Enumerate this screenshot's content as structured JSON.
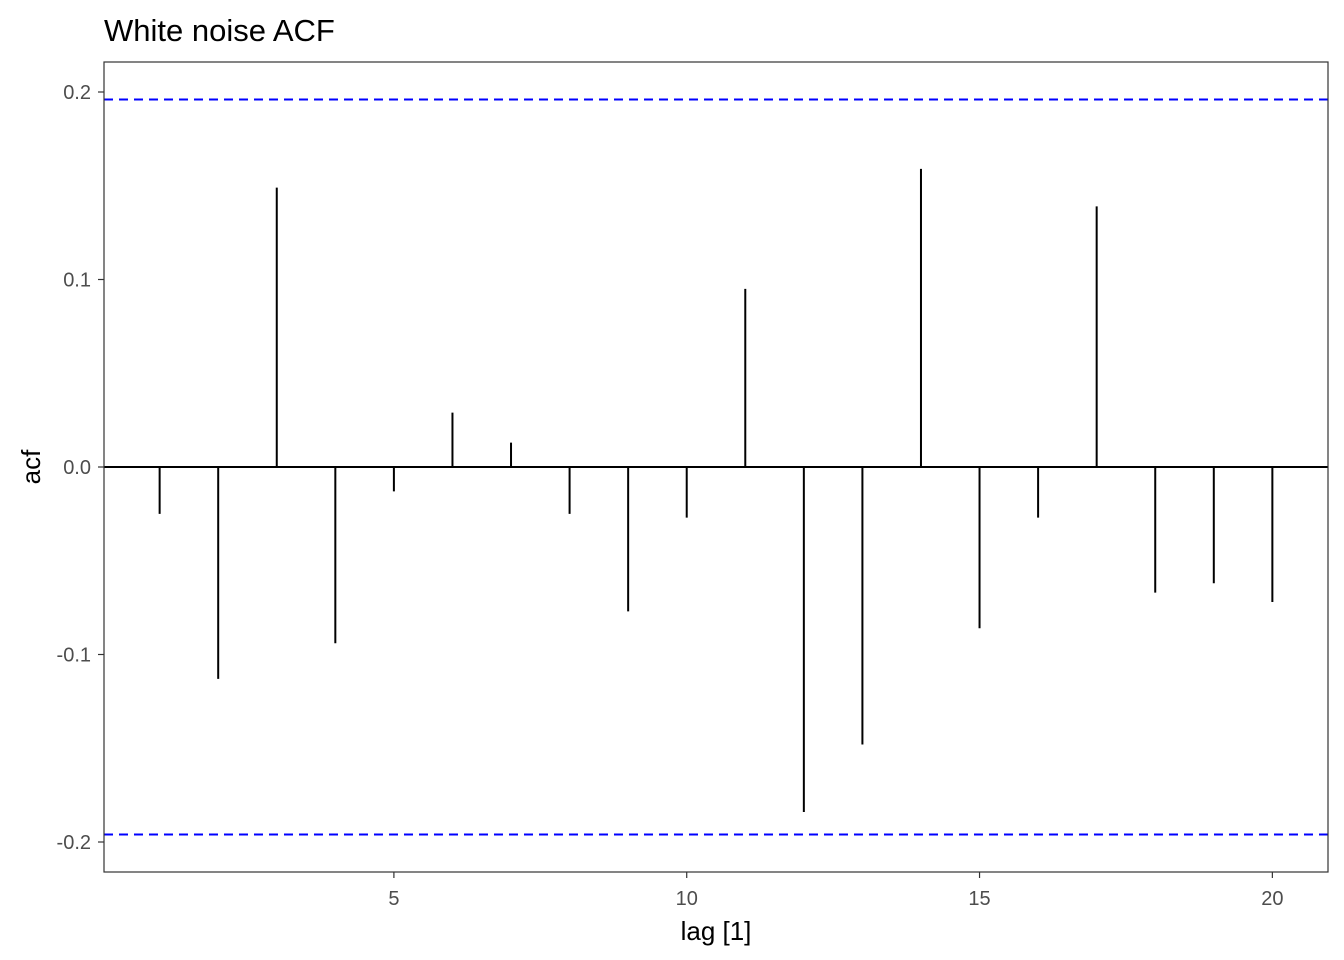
{
  "chart_data": {
    "type": "bar",
    "title": "White noise ACF",
    "xlabel": "lag [1]",
    "ylabel": "acf",
    "x": [
      1,
      2,
      3,
      4,
      5,
      6,
      7,
      8,
      9,
      10,
      11,
      12,
      13,
      14,
      15,
      16,
      17,
      18,
      19,
      20
    ],
    "values": [
      -0.025,
      -0.113,
      0.149,
      -0.094,
      -0.013,
      0.029,
      0.013,
      -0.025,
      -0.077,
      -0.027,
      0.095,
      -0.184,
      -0.148,
      0.159,
      -0.086,
      -0.027,
      0.139,
      -0.067,
      -0.062,
      -0.072
    ],
    "xlim": [
      0.05,
      20.95
    ],
    "ylim": [
      -0.216,
      0.216
    ],
    "xticks": [
      5,
      10,
      15,
      20
    ],
    "xtick_labels": [
      "5",
      "10",
      "15",
      "20"
    ],
    "yticks": [
      -0.2,
      -0.1,
      0.0,
      0.1,
      0.2
    ],
    "ytick_labels": [
      "-0.2",
      "-0.1",
      "0.0",
      "0.1",
      "0.2"
    ],
    "confidence_bounds": [
      0.196,
      -0.196
    ],
    "grid": false,
    "colors": {
      "spike": "#000000",
      "bound": "#0000ff",
      "frame": "#333333",
      "tick_text": "#4d4d4d"
    }
  }
}
